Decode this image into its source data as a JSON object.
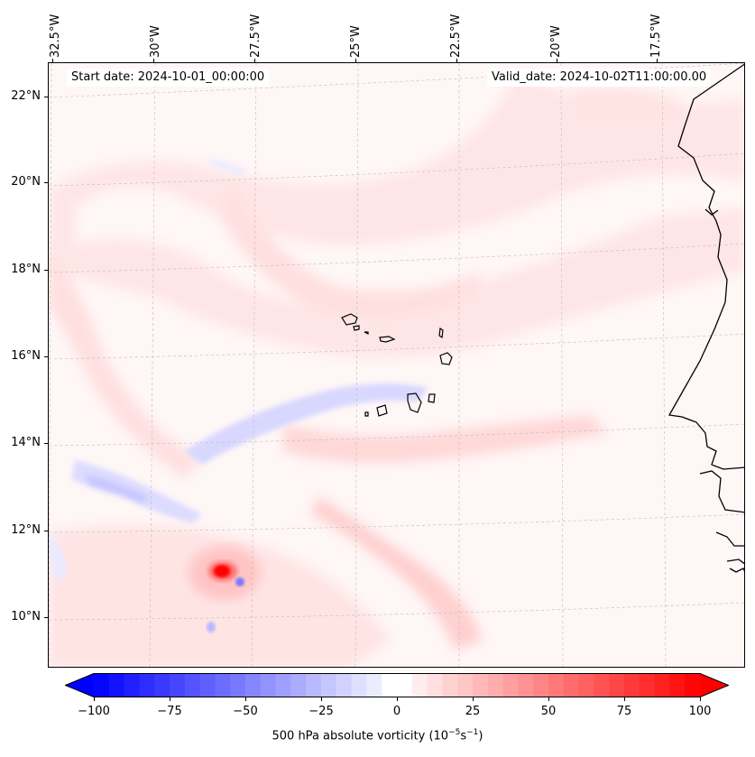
{
  "map": {
    "start_date": "Start date: 2024-10-01_00:00:00",
    "valid_date": "Valid_date: 2024-10-02T11:00:00.00",
    "lon_labels": [
      "32.5°W",
      "30°W",
      "27.5°W",
      "25°W",
      "22.5°W",
      "20°W",
      "17.5°W"
    ],
    "lat_labels": [
      "22°N",
      "20°N",
      "18°N",
      "16°N",
      "14°N",
      "12°N",
      "10°N"
    ],
    "colors": {
      "negative": "#0000ff",
      "positive": "#ff0000",
      "neutral": "#ffffff",
      "coast": "#000000"
    }
  },
  "colorbar": {
    "label_prefix": "500 hPa absolute vorticity (10",
    "label_exp1": "−5",
    "label_mid": "s",
    "label_exp2": "−1",
    "label_suffix": ")",
    "ticks": [
      "−100",
      "−75",
      "−50",
      "−25",
      "0",
      "25",
      "50",
      "75",
      "100"
    ],
    "min": -100,
    "max": 100,
    "levels": 40
  }
}
